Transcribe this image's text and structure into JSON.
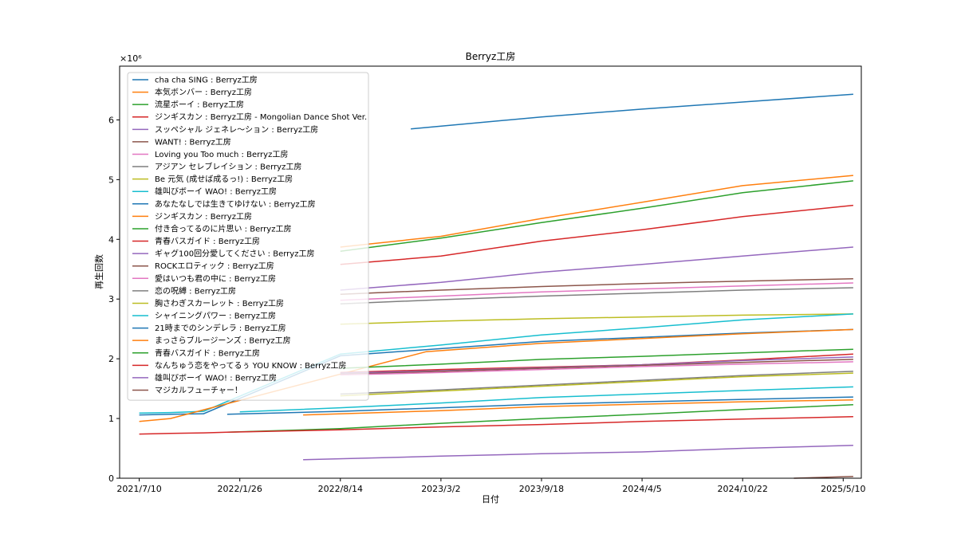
{
  "chart_data": {
    "type": "line",
    "title": "Berryz工房",
    "xlabel": "日付",
    "ylabel": "再生回数",
    "y_multiplier_label": "×10⁶",
    "x_tick_labels": [
      "2021/7/10",
      "2022/1/26",
      "2022/8/14",
      "2023/3/2",
      "2023/9/18",
      "2024/4/5",
      "2024/10/22",
      "2025/5/10"
    ],
    "y_tick_labels": [
      "0",
      "1",
      "2",
      "3",
      "4",
      "5",
      "6"
    ],
    "xlim": [
      "2021-06-01",
      "2025-06-15"
    ],
    "ylim": [
      0,
      6.9
    ],
    "grid": false,
    "legend_position": "upper-left",
    "series": [
      {
        "name": "cha cha SING : Berryz工房",
        "color": "#1f77b4",
        "points": [
          [
            "2023-01-01",
            5.85
          ],
          [
            "2023-09-18",
            6.05
          ],
          [
            "2024-04-05",
            6.18
          ],
          [
            "2024-10-22",
            6.3
          ],
          [
            "2025-05-30",
            6.43
          ]
        ]
      },
      {
        "name": "本気ボンバー : Berryz工房",
        "color": "#ff7f0e",
        "points": [
          [
            "2022-08-14",
            3.87
          ],
          [
            "2023-03-02",
            4.05
          ],
          [
            "2023-09-18",
            4.35
          ],
          [
            "2024-04-05",
            4.62
          ],
          [
            "2024-10-22",
            4.9
          ],
          [
            "2025-05-30",
            5.07
          ]
        ]
      },
      {
        "name": "流星ボーイ : Berryz工房",
        "color": "#2ca02c",
        "points": [
          [
            "2022-08-14",
            3.8
          ],
          [
            "2023-03-02",
            4.02
          ],
          [
            "2023-09-18",
            4.28
          ],
          [
            "2024-04-05",
            4.52
          ],
          [
            "2024-10-22",
            4.78
          ],
          [
            "2025-05-30",
            4.98
          ]
        ]
      },
      {
        "name": "ジンギスカン : Berryz工房 - Mongolian Dance Shot Ver.",
        "color": "#d62728",
        "points": [
          [
            "2022-08-14",
            3.58
          ],
          [
            "2023-03-02",
            3.72
          ],
          [
            "2023-09-18",
            3.97
          ],
          [
            "2024-04-05",
            4.16
          ],
          [
            "2024-10-22",
            4.38
          ],
          [
            "2025-05-30",
            4.57
          ]
        ]
      },
      {
        "name": "スッペシャル ジェネレ〜ション : Berryz工房",
        "color": "#9467bd",
        "points": [
          [
            "2022-08-14",
            3.15
          ],
          [
            "2023-03-02",
            3.28
          ],
          [
            "2023-09-18",
            3.45
          ],
          [
            "2024-04-05",
            3.58
          ],
          [
            "2024-10-22",
            3.72
          ],
          [
            "2025-05-30",
            3.87
          ]
        ]
      },
      {
        "name": "WANT! : Berryz工房",
        "color": "#8c564b",
        "points": [
          [
            "2022-08-14",
            3.08
          ],
          [
            "2023-03-02",
            3.15
          ],
          [
            "2023-09-18",
            3.21
          ],
          [
            "2024-04-05",
            3.26
          ],
          [
            "2024-10-22",
            3.3
          ],
          [
            "2025-05-30",
            3.34
          ]
        ]
      },
      {
        "name": "Loving you Too much : Berryz工房",
        "color": "#e377c2",
        "points": [
          [
            "2022-08-14",
            2.98
          ],
          [
            "2023-03-02",
            3.05
          ],
          [
            "2023-09-18",
            3.12
          ],
          [
            "2024-04-05",
            3.17
          ],
          [
            "2024-10-22",
            3.22
          ],
          [
            "2025-05-30",
            3.27
          ]
        ]
      },
      {
        "name": "アジアン セレブレイション : Berryz工房",
        "color": "#7f7f7f",
        "points": [
          [
            "2022-08-14",
            2.92
          ],
          [
            "2023-03-02",
            2.99
          ],
          [
            "2023-09-18",
            3.05
          ],
          [
            "2024-04-05",
            3.1
          ],
          [
            "2024-10-22",
            3.15
          ],
          [
            "2025-05-30",
            3.19
          ]
        ]
      },
      {
        "name": "Be 元気 (成せば成るっ!) : Berryz工房",
        "color": "#bcbd22",
        "points": [
          [
            "2022-08-14",
            2.58
          ],
          [
            "2023-03-02",
            2.63
          ],
          [
            "2023-09-18",
            2.67
          ],
          [
            "2024-04-05",
            2.7
          ],
          [
            "2024-10-22",
            2.73
          ],
          [
            "2025-05-30",
            2.75
          ]
        ]
      },
      {
        "name": "雄叫びボーイ WAO! : Berryz工房",
        "color": "#17becf",
        "points": [
          [
            "2021-07-10",
            1.09
          ],
          [
            "2021-09-10",
            1.1
          ],
          [
            "2021-11-15",
            1.12
          ],
          [
            "2022-08-14",
            2.08
          ],
          [
            "2023-03-02",
            2.23
          ],
          [
            "2023-09-18",
            2.4
          ],
          [
            "2024-04-05",
            2.52
          ],
          [
            "2024-10-22",
            2.65
          ],
          [
            "2025-05-30",
            2.75
          ]
        ]
      },
      {
        "name": "あなたなしでは生きてゆけない : Berryz工房",
        "color": "#1f77b4",
        "points": [
          [
            "2021-07-10",
            1.06
          ],
          [
            "2021-09-10",
            1.07
          ],
          [
            "2021-11-15",
            1.08
          ],
          [
            "2022-08-14",
            2.05
          ],
          [
            "2023-03-02",
            2.17
          ],
          [
            "2023-09-18",
            2.29
          ],
          [
            "2024-04-05",
            2.36
          ],
          [
            "2024-10-22",
            2.43
          ],
          [
            "2025-05-30",
            2.49
          ]
        ]
      },
      {
        "name": "ジンギスカン : Berryz工房",
        "color": "#ff7f0e",
        "points": [
          [
            "2021-07-10",
            0.95
          ],
          [
            "2021-09-10",
            1.0
          ],
          [
            "2023-02-01",
            2.12
          ],
          [
            "2023-09-18",
            2.26
          ],
          [
            "2024-04-05",
            2.34
          ],
          [
            "2024-10-22",
            2.42
          ],
          [
            "2025-05-30",
            2.49
          ]
        ]
      },
      {
        "name": "付き合ってるのに片思い : Berryz工房",
        "color": "#2ca02c",
        "points": [
          [
            "2022-08-14",
            1.84
          ],
          [
            "2023-03-02",
            1.91
          ],
          [
            "2023-09-18",
            1.99
          ],
          [
            "2024-04-05",
            2.04
          ],
          [
            "2024-10-22",
            2.1
          ],
          [
            "2025-05-30",
            2.16
          ]
        ]
      },
      {
        "name": "青春バスガイド : Berryz工房",
        "color": "#d62728",
        "points": [
          [
            "2022-08-14",
            1.77
          ],
          [
            "2023-03-02",
            1.82
          ],
          [
            "2023-09-18",
            1.86
          ],
          [
            "2024-04-05",
            1.9
          ],
          [
            "2024-10-22",
            1.98
          ],
          [
            "2025-05-30",
            2.08
          ]
        ]
      },
      {
        "name": "ギャグ100回分愛してください : Berryz工房",
        "color": "#9467bd",
        "points": [
          [
            "2022-08-14",
            1.76
          ],
          [
            "2023-03-02",
            1.8
          ],
          [
            "2023-09-18",
            1.85
          ],
          [
            "2024-04-05",
            1.9
          ],
          [
            "2024-10-22",
            1.97
          ],
          [
            "2025-05-30",
            2.03
          ]
        ]
      },
      {
        "name": "ROCKエロティック : Berryz工房",
        "color": "#8c564b",
        "points": [
          [
            "2022-08-14",
            1.74
          ],
          [
            "2023-03-02",
            1.79
          ],
          [
            "2023-09-18",
            1.84
          ],
          [
            "2024-04-05",
            1.89
          ],
          [
            "2024-10-22",
            1.94
          ],
          [
            "2025-05-30",
            1.99
          ]
        ]
      },
      {
        "name": "愛はいつも君の中に : Berryz工房",
        "color": "#e377c2",
        "points": [
          [
            "2022-08-14",
            1.73
          ],
          [
            "2023-03-02",
            1.77
          ],
          [
            "2023-09-18",
            1.82
          ],
          [
            "2024-04-05",
            1.87
          ],
          [
            "2024-10-22",
            1.91
          ],
          [
            "2025-05-30",
            1.95
          ]
        ]
      },
      {
        "name": "恋の呪縛 : Berryz工房",
        "color": "#7f7f7f",
        "points": [
          [
            "2022-08-14",
            1.41
          ],
          [
            "2023-03-02",
            1.48
          ],
          [
            "2023-09-18",
            1.56
          ],
          [
            "2024-04-05",
            1.64
          ],
          [
            "2024-10-22",
            1.72
          ],
          [
            "2025-05-30",
            1.79
          ]
        ]
      },
      {
        "name": "胸さわぎスカーレット : Berryz工房",
        "color": "#bcbd22",
        "points": [
          [
            "2022-08-14",
            1.38
          ],
          [
            "2023-03-02",
            1.46
          ],
          [
            "2023-09-18",
            1.54
          ],
          [
            "2024-04-05",
            1.62
          ],
          [
            "2024-10-22",
            1.7
          ],
          [
            "2025-05-30",
            1.76
          ]
        ]
      },
      {
        "name": "シャイニングパワー : Berryz工房",
        "color": "#17becf",
        "points": [
          [
            "2022-01-26",
            1.11
          ],
          [
            "2022-08-14",
            1.18
          ],
          [
            "2023-03-02",
            1.26
          ],
          [
            "2023-09-18",
            1.35
          ],
          [
            "2024-04-05",
            1.41
          ],
          [
            "2024-10-22",
            1.47
          ],
          [
            "2025-05-30",
            1.53
          ]
        ]
      },
      {
        "name": "21時までのシンデレラ : Berryz工房",
        "color": "#1f77b4",
        "points": [
          [
            "2022-01-01",
            1.07
          ],
          [
            "2022-08-14",
            1.12
          ],
          [
            "2023-03-02",
            1.18
          ],
          [
            "2023-09-18",
            1.24
          ],
          [
            "2024-04-05",
            1.28
          ],
          [
            "2024-10-22",
            1.32
          ],
          [
            "2025-05-30",
            1.36
          ]
        ]
      },
      {
        "name": "まっさらブルージーンズ : Berryz工房",
        "color": "#ff7f0e",
        "points": [
          [
            "2022-06-01",
            1.06
          ],
          [
            "2023-03-02",
            1.13
          ],
          [
            "2023-09-18",
            1.2
          ],
          [
            "2024-04-05",
            1.24
          ],
          [
            "2024-10-22",
            1.28
          ],
          [
            "2025-05-30",
            1.31
          ]
        ]
      },
      {
        "name": "青春バスガイド : Berryz工房",
        "color": "#2ca02c",
        "points": [
          [
            "2022-01-01",
            0.77
          ],
          [
            "2022-08-14",
            0.83
          ],
          [
            "2023-03-02",
            0.92
          ],
          [
            "2023-09-18",
            1.0
          ],
          [
            "2024-04-05",
            1.07
          ],
          [
            "2024-10-22",
            1.15
          ],
          [
            "2025-05-30",
            1.23
          ]
        ]
      },
      {
        "name": "なんちゅう恋をやってるぅ YOU KNOW : Berryz工房",
        "color": "#d62728",
        "points": [
          [
            "2021-07-10",
            0.74
          ],
          [
            "2021-09-10",
            0.75
          ],
          [
            "2021-11-15",
            0.76
          ],
          [
            "2022-01-01",
            0.77
          ],
          [
            "2022-08-14",
            0.81
          ],
          [
            "2023-03-02",
            0.86
          ],
          [
            "2023-09-18",
            0.9
          ],
          [
            "2024-04-05",
            0.95
          ],
          [
            "2024-10-22",
            0.99
          ],
          [
            "2025-05-30",
            1.03
          ]
        ]
      },
      {
        "name": "雄叫びボーイ WAO! : Berryz工房",
        "color": "#9467bd",
        "points": [
          [
            "2022-06-01",
            0.31
          ],
          [
            "2023-03-02",
            0.37
          ],
          [
            "2023-09-18",
            0.41
          ],
          [
            "2024-04-05",
            0.44
          ],
          [
            "2024-10-22",
            0.5
          ],
          [
            "2025-05-30",
            0.55
          ]
        ]
      },
      {
        "name": "マジカルフューチャー！",
        "color": "#8c564b",
        "points": [
          [
            "2025-02-01",
            0.0
          ],
          [
            "2025-05-30",
            0.03
          ]
        ]
      }
    ]
  }
}
